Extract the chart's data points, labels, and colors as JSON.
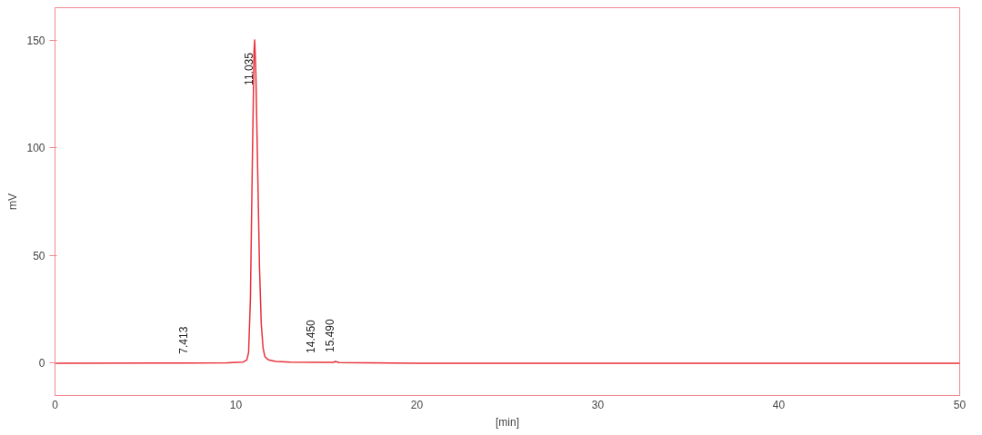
{
  "chart_data": {
    "type": "line",
    "ylabel": "mV",
    "xlabel": "[min]",
    "x": [
      0,
      6,
      7.413,
      9.5,
      10.4,
      10.6,
      10.7,
      10.8,
      10.9,
      11.0,
      11.035,
      11.1,
      11.2,
      11.3,
      11.4,
      11.5,
      11.6,
      11.8,
      12.2,
      13,
      14.45,
      15.4,
      15.49,
      15.7,
      20,
      50
    ],
    "series": [
      {
        "color": "#e8313a",
        "values": [
          0,
          0.1,
          0.1,
          0.2,
          0.5,
          1.5,
          5,
          30,
          90,
          145,
          150,
          135,
          90,
          45,
          18,
          7,
          3,
          1.5,
          0.8,
          0.5,
          0.4,
          0.4,
          0.8,
          0.3,
          0,
          0
        ]
      }
    ],
    "xlim": [
      0,
      50
    ],
    "xticks": [
      0,
      10,
      20,
      30,
      40,
      50
    ],
    "ylim": [
      -15,
      165
    ],
    "yticks": [
      0,
      50,
      100,
      150
    ],
    "grid": false,
    "marker": "none",
    "line_style": "solid",
    "annotations": [
      {
        "text": "7.413",
        "x": 7.413,
        "y": 0.1
      },
      {
        "text": "11.035",
        "x": 11.035,
        "y": 150
      },
      {
        "text": "14.450",
        "x": 14.45,
        "y": 0.4
      },
      {
        "text": "15.490",
        "x": 15.49,
        "y": 0.8
      }
    ]
  }
}
